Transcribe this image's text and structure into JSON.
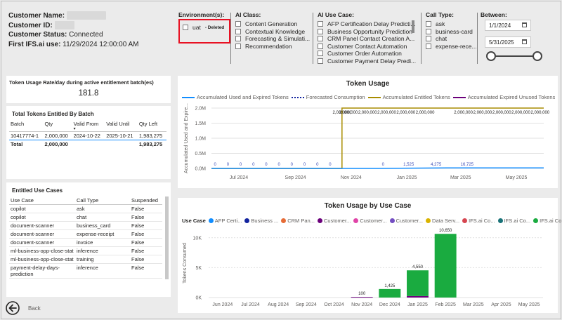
{
  "customer": {
    "name_label": "Customer Name:",
    "id_label": "Customer ID:",
    "status_label": "Customer Status:",
    "status_value": "Connected",
    "first_use_label": "First IFS.ai use:",
    "first_use_value": "11/29/2024 12:00:00 AM"
  },
  "slicers": {
    "environment": {
      "title": "Environment(s):",
      "items": [
        {
          "label": "uat",
          "tag": "- Deleted"
        }
      ]
    },
    "ai_class": {
      "title": "AI Class:",
      "items": [
        "Content Generation",
        "Contextual Knowledge",
        "Forecasting & Simulati...",
        "Recommendation"
      ]
    },
    "ai_use_case": {
      "title": "AI Use Case:",
      "items": [
        "AFP Certification Delay Predicti...",
        "Business Opportunity Prediction",
        "CRM Panel Contact Creation A...",
        "Customer Contact Automation",
        "Customer Order Automation",
        "Customer Payment Delay Predi..."
      ]
    },
    "call_type": {
      "title": "Call Type:",
      "items": [
        "ask",
        "business-card",
        "chat",
        "expense-rece..."
      ]
    },
    "between": {
      "title": "Between:",
      "start": "1/1/2024",
      "end": "5/31/2025",
      "range_start_fraction": 0,
      "range_end_fraction": 1
    }
  },
  "rate": {
    "title": "Token Usage Rate/day during active entitlement batch(es)",
    "value": "181.8"
  },
  "batch": {
    "title": "Total Tokens Entitled By Batch",
    "headers": [
      "Batch",
      "Qty",
      "Valid From",
      "Valid Until",
      "Qty Left"
    ],
    "sort_indicator": "▾",
    "rows": [
      [
        "10417774-1",
        "2,000,000",
        "2024-10-22",
        "2025-10-21",
        "1,983,275"
      ]
    ],
    "total": [
      "Total",
      "2,000,000",
      "",
      "",
      "1,983,275"
    ]
  },
  "usecases": {
    "title": "Entitled Use Cases",
    "headers": [
      "Use Case",
      "Call Type",
      "Suspended"
    ],
    "rows": [
      [
        "copilot",
        "ask",
        "False"
      ],
      [
        "copilot",
        "chat",
        "False"
      ],
      [
        "document-scanner",
        "business_card",
        "False"
      ],
      [
        "document-scanner",
        "expense-receipt",
        "False"
      ],
      [
        "document-scanner",
        "invoice",
        "False"
      ],
      [
        "ml-business-opp-close-stat",
        "inference",
        "False"
      ],
      [
        "ml-business-opp-close-stat",
        "training",
        "False"
      ],
      [
        "payment-delay-days-prediction",
        "inference",
        "False"
      ]
    ]
  },
  "back": {
    "label": "Back",
    "icon": "back-arrow-icon"
  },
  "colors": {
    "accent_red": "#e81123",
    "entitled": "#a88c00",
    "used": "#118dff",
    "forecast": "#12239e",
    "expired": "#6b007b",
    "bar_green": "#1aab40"
  },
  "chart_data": [
    {
      "type": "line",
      "title": "Token Usage",
      "ylabel": "Accumulated Used and Expire...",
      "legend": [
        "Accumulated Used and Expired Tokens",
        "Forecasted Consumption",
        "Accumulated Entitled Tokens",
        "Accumulated Expired Unused Tokens"
      ],
      "legend_placement": "top",
      "ytick_labels": [
        "0.0M",
        "0.5M",
        "1.0M",
        "1.5M",
        "2.0M"
      ],
      "xtick_labels": [
        "Jul 2024",
        "Sep 2024",
        "Nov 2024",
        "Jan 2025",
        "Mar 2025",
        "May 2025"
      ],
      "ylim": [
        0,
        2000000
      ],
      "x_start": "2024-06-01",
      "x_end": "2025-05-31",
      "entitled_series": {
        "name": "Accumulated Entitled Tokens",
        "points": [
          [
            "2024-06-01",
            0
          ],
          [
            "2024-10-22",
            0
          ],
          [
            "2024-10-22",
            2000000
          ],
          [
            "2025-05-31",
            2000000
          ]
        ],
        "labels": [
          [
            "2024-10-22",
            "2,000,000"
          ],
          [
            "2024-10-29",
            "2,000,000"
          ],
          [
            "2024-11-19",
            "2,000,000"
          ],
          [
            "2024-12-10",
            "2,000,000"
          ],
          [
            "2024-12-31",
            "2,000,000"
          ],
          [
            "2025-01-21",
            "2,000,000"
          ],
          [
            "2025-03-04",
            "2,000,000"
          ],
          [
            "2025-03-25",
            "2,000,000"
          ],
          [
            "2025-04-15",
            "2,000,000"
          ],
          [
            "2025-05-06",
            "2,000,000"
          ],
          [
            "2025-05-27",
            "2,000,000"
          ]
        ]
      },
      "used_series": {
        "name": "Accumulated Used and Expired Tokens",
        "points": [
          [
            "2024-06-01",
            0
          ],
          [
            "2024-11-29",
            0
          ],
          [
            "2025-02-15",
            16725
          ],
          [
            "2025-05-31",
            16725
          ]
        ],
        "labels": [
          [
            "2024-06-05",
            "0"
          ],
          [
            "2024-06-19",
            "0"
          ],
          [
            "2024-07-03",
            "0"
          ],
          [
            "2024-07-17",
            "0"
          ],
          [
            "2024-07-31",
            "0"
          ],
          [
            "2024-08-14",
            "0"
          ],
          [
            "2024-08-28",
            "0"
          ],
          [
            "2024-09-11",
            "0"
          ],
          [
            "2024-09-25",
            "0"
          ],
          [
            "2024-10-09",
            "0"
          ],
          [
            "2024-12-06",
            "0"
          ],
          [
            "2025-01-03",
            "1,525"
          ],
          [
            "2025-02-02",
            "4,275"
          ],
          [
            "2025-03-08",
            "16,725"
          ]
        ]
      }
    },
    {
      "type": "bar",
      "title": "Token Usage by Use Case",
      "ylabel": "Tokens Consumed",
      "legend_title": "Use Case",
      "legend": [
        {
          "name": "AFP Certi...",
          "color": "#118dff"
        },
        {
          "name": "Business ...",
          "color": "#12239e"
        },
        {
          "name": "CRM Pan...",
          "color": "#e66c37"
        },
        {
          "name": "Customer...",
          "color": "#6b007b"
        },
        {
          "name": "Customer...",
          "color": "#e044a7"
        },
        {
          "name": "Customer...",
          "color": "#744ec2"
        },
        {
          "name": "Data Serv...",
          "color": "#d9b300"
        },
        {
          "name": "IFS.ai Co...",
          "color": "#d64550"
        },
        {
          "name": "IFS.ai Co...",
          "color": "#197278"
        },
        {
          "name": "IFS.ai Co...",
          "color": "#1aab40"
        }
      ],
      "categories": [
        "Jun 2024",
        "Jul 2024",
        "Aug 2024",
        "Sep 2024",
        "Oct 2024",
        "Nov 2024",
        "Dec 2024",
        "Jan 2025",
        "Feb 2025",
        "Mar 2025",
        "Apr 2025",
        "May 2025"
      ],
      "totals": [
        0,
        0,
        0,
        0,
        0,
        100,
        1425,
        4550,
        10650,
        0,
        0,
        0
      ],
      "total_labels": [
        "",
        "",
        "",
        "",
        "",
        "100",
        "1,425",
        "4,550",
        "10,650",
        "",
        "",
        ""
      ],
      "series": [
        {
          "name": "Customer...",
          "color": "#6b007b",
          "values": [
            0,
            0,
            0,
            0,
            0,
            100,
            0,
            250,
            0,
            0,
            0,
            0
          ]
        },
        {
          "name": "IFS.ai Co...",
          "color": "#1aab40",
          "values": [
            0,
            0,
            0,
            0,
            0,
            0,
            1425,
            4300,
            10650,
            0,
            0,
            0
          ]
        }
      ],
      "ytick_labels": [
        "0K",
        "5K",
        "10K"
      ],
      "ylim": [
        0,
        11500
      ]
    }
  ]
}
